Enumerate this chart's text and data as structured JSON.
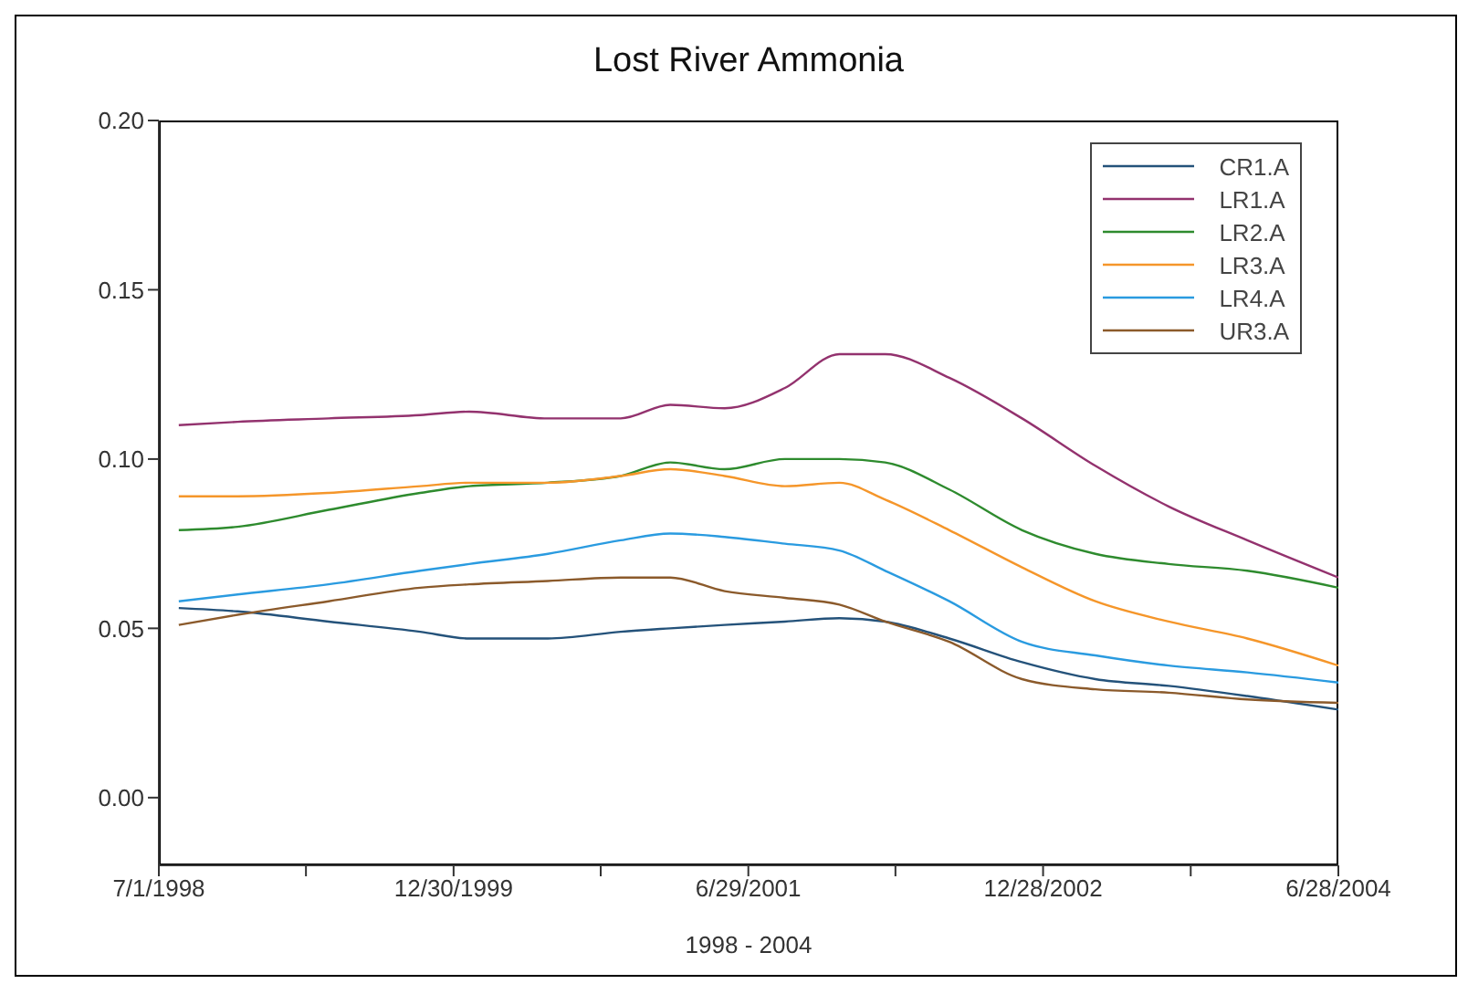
{
  "chart_data": {
    "type": "line",
    "title": "Lost River Ammonia",
    "xlabel": "1998 - 2004",
    "x": [
      "1998-08-07",
      "1998-11-24",
      "1999-05-12",
      "1999-10-29",
      "2000-01-28",
      "2000-06-22",
      "2000-11-04",
      "2001-02-04",
      "2001-05-16",
      "2001-09-05",
      "2001-12-15",
      "2002-03-10",
      "2002-07-07",
      "2002-11-19",
      "2003-04-04",
      "2003-08-18",
      "2004-01-11",
      "2004-06-28"
    ],
    "series": [
      {
        "name": "CR1.A",
        "color": "#24527a",
        "values": [
          0.056,
          0.055,
          0.052,
          0.049,
          0.047,
          0.047,
          0.049,
          0.05,
          0.051,
          0.052,
          0.053,
          0.052,
          0.047,
          0.04,
          0.035,
          0.033,
          0.03,
          0.026
        ]
      },
      {
        "name": "LR1.A",
        "color": "#93326e",
        "values": [
          0.11,
          0.111,
          0.112,
          0.113,
          0.114,
          0.112,
          0.112,
          0.116,
          0.115,
          0.121,
          0.131,
          0.131,
          0.124,
          0.112,
          0.098,
          0.086,
          0.076,
          0.065
        ]
      },
      {
        "name": "LR2.A",
        "color": "#2e8b2e",
        "values": [
          0.079,
          0.08,
          0.085,
          0.09,
          0.092,
          0.093,
          0.095,
          0.099,
          0.097,
          0.1,
          0.1,
          0.099,
          0.091,
          0.079,
          0.072,
          0.069,
          0.067,
          0.062
        ]
      },
      {
        "name": "LR3.A",
        "color": "#f5962a",
        "values": [
          0.089,
          0.089,
          0.09,
          0.092,
          0.093,
          0.093,
          0.095,
          0.097,
          0.095,
          0.092,
          0.093,
          0.088,
          0.079,
          0.068,
          0.058,
          0.052,
          0.047,
          0.039
        ]
      },
      {
        "name": "LR4.A",
        "color": "#2a9be0",
        "values": [
          0.058,
          0.06,
          0.063,
          0.067,
          0.069,
          0.072,
          0.076,
          0.078,
          0.077,
          0.075,
          0.073,
          0.067,
          0.058,
          0.046,
          0.042,
          0.039,
          0.037,
          0.034
        ]
      },
      {
        "name": "UR3.A",
        "color": "#8b5a2b",
        "values": [
          0.051,
          0.054,
          0.058,
          0.062,
          0.063,
          0.064,
          0.065,
          0.065,
          0.061,
          0.059,
          0.057,
          0.052,
          0.046,
          0.035,
          0.032,
          0.031,
          0.029,
          0.028
        ]
      }
    ],
    "xlim": [
      "1998-07-01",
      "2004-06-28"
    ],
    "xticks": [
      {
        "value": "1998-07-01",
        "label": "7/1/1998"
      },
      {
        "value": "1999-03-31",
        "label": null
      },
      {
        "value": "1999-12-30",
        "label": "12/30/1999"
      },
      {
        "value": "2000-09-28",
        "label": null
      },
      {
        "value": "2001-06-29",
        "label": "6/29/2001"
      },
      {
        "value": "2002-03-29",
        "label": null
      },
      {
        "value": "2002-12-28",
        "label": "12/28/2002"
      },
      {
        "value": "2003-09-28",
        "label": null
      },
      {
        "value": "2004-06-28",
        "label": "6/28/2004"
      }
    ],
    "ylim": [
      -0.02,
      0.2
    ],
    "yticks": [
      {
        "value": 0,
        "label": "0.00"
      },
      {
        "value": 0.05,
        "label": "0.05"
      },
      {
        "value": 0.1,
        "label": "0.10"
      },
      {
        "value": 0.15,
        "label": "0.15"
      },
      {
        "value": 0.2,
        "label": "0.20"
      }
    ],
    "grid": false,
    "legend": "top right",
    "marker": "none",
    "line_style": "solid"
  }
}
